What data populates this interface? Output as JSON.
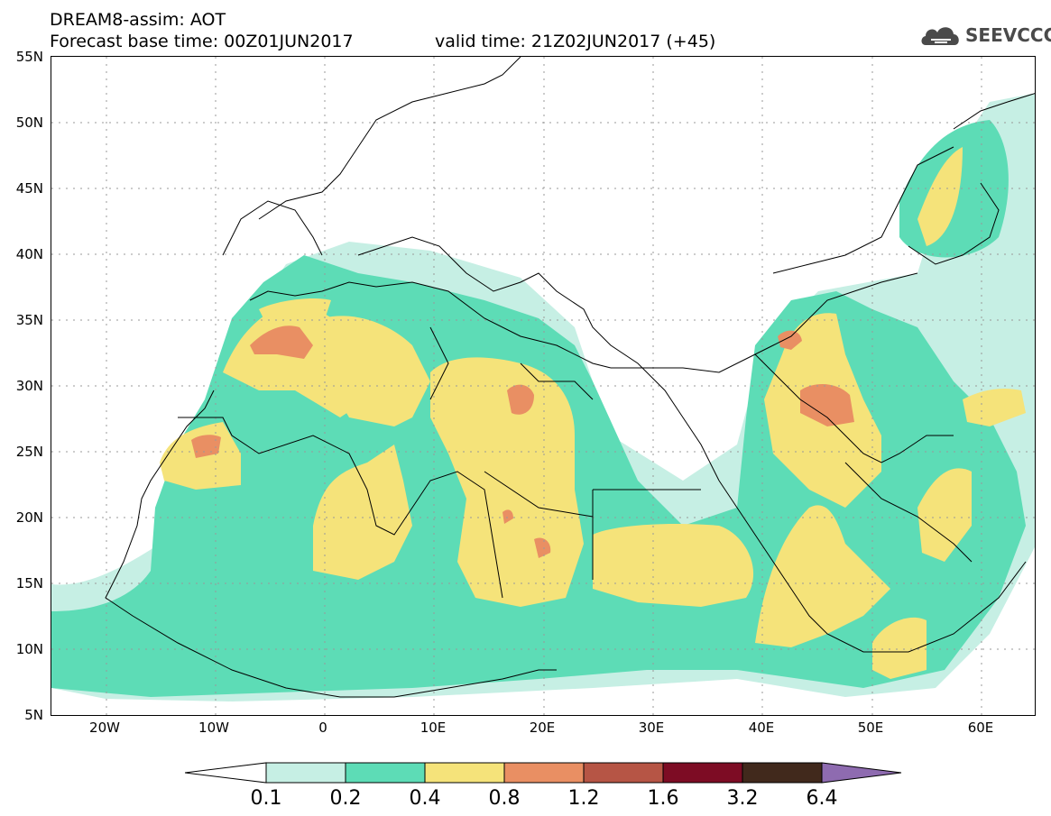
{
  "header": {
    "title_line1": "DREAM8-assim: AOT",
    "title_line2": "Forecast base time: 00Z01JUN2017",
    "valid_time": "valid time: 21Z02JUN2017 (+45)",
    "logo_text": "SEEVCCC",
    "logo_icon": "cloud-logo-icon"
  },
  "map": {
    "lat_labels": [
      "55N",
      "50N",
      "45N",
      "40N",
      "35N",
      "30N",
      "25N",
      "20N",
      "15N",
      "10N",
      "5N"
    ],
    "lon_labels": [
      "20W",
      "10W",
      "0",
      "10E",
      "20E",
      "30E",
      "40E",
      "50E",
      "60E"
    ],
    "lat_range": [
      5,
      55
    ],
    "lon_range": [
      -25,
      65
    ],
    "grid": true,
    "quantity": "AOT"
  },
  "colorbar": {
    "labels": [
      "0.1",
      "0.2",
      "0.4",
      "0.8",
      "1.2",
      "1.6",
      "3.2",
      "6.4"
    ],
    "colors": [
      "#ffffff",
      "#c6efe4",
      "#5ddcb6",
      "#f5e37a",
      "#e98f63",
      "#b65545",
      "#7d0c24",
      "#41291c",
      "#8e6bb0"
    ]
  },
  "colors": {
    "lvl1": "#c6efe4",
    "lvl2": "#5ddcb6",
    "lvl3": "#f5e37a",
    "lvl4": "#e98f63"
  }
}
